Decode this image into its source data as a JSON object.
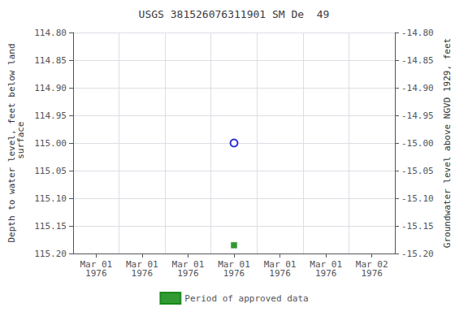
{
  "chart_data": {
    "type": "scatter",
    "title": "USGS 381526076311901 SM De  49",
    "ylabel": "Depth to water level, feet below land\n surface",
    "y2label": "Groundwater level above NGVD 1929, feet",
    "categories": [
      "Mar 01\n1976",
      "Mar 01\n1976",
      "Mar 01\n1976",
      "Mar 01\n1976",
      "Mar 01\n1976",
      "Mar 01\n1976",
      "Mar 02\n1976"
    ],
    "series": [
      {
        "color": "#0000cc",
        "marker": "open_circle",
        "values": [
          null,
          null,
          null,
          115.0,
          null,
          null,
          null
        ]
      },
      {
        "name": "Period of approved data",
        "color": "#008000",
        "marker": "square",
        "values": [
          null,
          null,
          null,
          115.185,
          null,
          null,
          null
        ]
      }
    ],
    "ylim": [
      115.2,
      114.8
    ],
    "yticks": [
      {
        "value": 114.8,
        "label": "114.80"
      },
      {
        "value": 114.85,
        "label": "114.85"
      },
      {
        "value": 114.9,
        "label": "114.90"
      },
      {
        "value": 114.95,
        "label": "114.95"
      },
      {
        "value": 115.0,
        "label": "115.00"
      },
      {
        "value": 115.05,
        "label": "115.05"
      },
      {
        "value": 115.1,
        "label": "115.10"
      },
      {
        "value": 115.15,
        "label": "115.15"
      },
      {
        "value": 115.2,
        "label": "115.20"
      }
    ],
    "y2lim": [
      -15.2,
      -14.8
    ],
    "y2ticks": [
      {
        "value": -14.8,
        "label": "-14.80"
      },
      {
        "value": -14.85,
        "label": "-14.85"
      },
      {
        "value": -14.9,
        "label": "-14.90"
      },
      {
        "value": -14.95,
        "label": "-14.95"
      },
      {
        "value": -15.0,
        "label": "-15.00"
      },
      {
        "value": -15.05,
        "label": "-15.05"
      },
      {
        "value": -15.1,
        "label": "-15.10"
      },
      {
        "value": -15.15,
        "label": "-15.15"
      },
      {
        "value": -15.2,
        "label": "-15.20"
      }
    ],
    "grid": true,
    "legend": "bottom"
  }
}
